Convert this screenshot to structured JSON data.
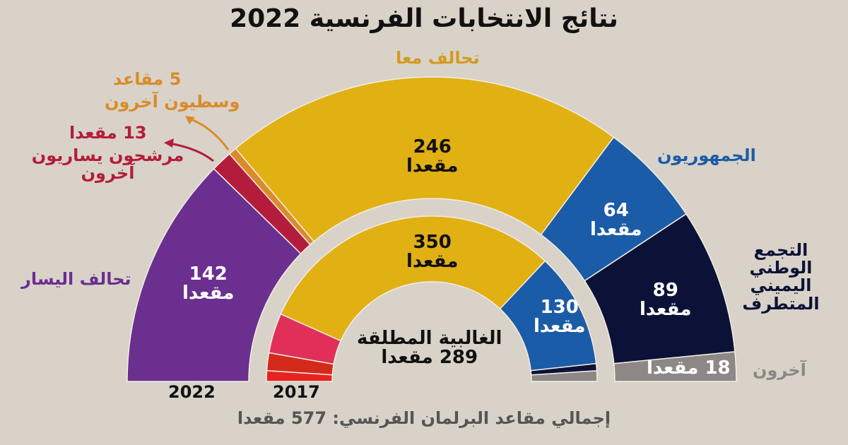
{
  "title": "نتائج الانتخابات الفرنسية 2022",
  "footer": "إجمالي مقاعد البرلمان الفرنسي: 577 مقعدا",
  "chart_data": [
    {
      "type": "pie",
      "subtype": "hemicycle",
      "year_label": "2022",
      "total": 577,
      "unit": "مقعدا",
      "slices": [
        {
          "name": "تحالف اليسار",
          "value": 142,
          "value_label": "142",
          "color": "#6b2f8f"
        },
        {
          "name": "مرشحون يساريون آخرون",
          "value": 13,
          "value_label": "13 مقعدا",
          "color": "#b31d3b"
        },
        {
          "name": "وسطيون آخرون",
          "value": 5,
          "value_label": "5 مقاعد",
          "color": "#d98b2b"
        },
        {
          "name": "تحالف معا",
          "value": 246,
          "value_label": "246",
          "color": "#e1b013"
        },
        {
          "name": "الجمهوريون",
          "value": 64,
          "value_label": "64",
          "color": "#1b5ca8"
        },
        {
          "name": "التجمع الوطني اليميني المتطرف",
          "value": 89,
          "value_label": "89",
          "color": "#0c1237"
        },
        {
          "name": "آخرون",
          "value": 18,
          "value_label": "18 مقعدا",
          "color": "#8d8885"
        }
      ]
    },
    {
      "type": "pie",
      "subtype": "hemicycle",
      "year_label": "2017",
      "total": 577,
      "unit": "مقعدا",
      "majority_label": "الغالبية المطلقة",
      "majority_value": "289 مقعدا",
      "slices": [
        {
          "value": 12,
          "color": "#e52420"
        },
        {
          "value": 20,
          "color": "#d42a1c"
        },
        {
          "value": 45,
          "color": "#e0305a"
        },
        {
          "value": 350,
          "value_label": "350",
          "color": "#e1b013"
        },
        {
          "value": 130,
          "value_label": "130",
          "color": "#1b5ca8"
        },
        {
          "value": 8,
          "color": "#0c1237"
        },
        {
          "value": 12,
          "color": "#8d8885"
        }
      ]
    }
  ]
}
